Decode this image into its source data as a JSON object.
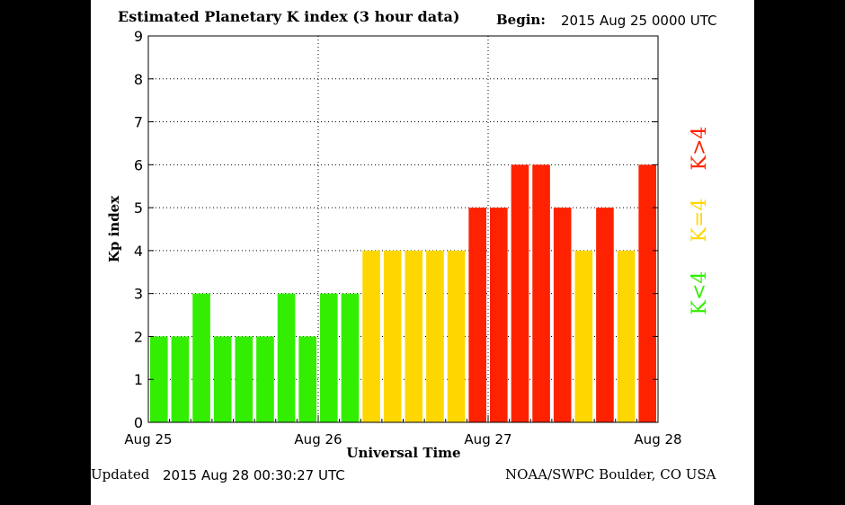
{
  "header": {
    "title": "Estimated Planetary K index (3 hour data)",
    "begin_label": "Begin:",
    "begin_value": "2015 Aug 25 0000 UTC"
  },
  "footer": {
    "updated_label": "Updated",
    "updated_value": "2015 Aug 28 00:30:27 UTC",
    "credit": "NOAA/SWPC Boulder, CO USA"
  },
  "legend": {
    "high": {
      "label": "K>4",
      "color": "#ff2200"
    },
    "equal": {
      "label": "K=4",
      "color": "#ffd700"
    },
    "low": {
      "label": "K<4",
      "color": "#33ee00"
    }
  },
  "chart_data": {
    "type": "bar",
    "xlabel": "Universal Time",
    "ylabel": "Kp index",
    "ylim": [
      0,
      9
    ],
    "yticks": [
      0,
      1,
      2,
      3,
      4,
      5,
      6,
      7,
      8,
      9
    ],
    "x_tick_labels": [
      "Aug 25",
      "Aug 26",
      "Aug 27",
      "Aug 28"
    ],
    "interval_hours": 3,
    "values": [
      2,
      2,
      3,
      2,
      2,
      2,
      3,
      2,
      3,
      3,
      4,
      4,
      4,
      4,
      4,
      5,
      5,
      6,
      6,
      5,
      4,
      5,
      4,
      6
    ],
    "colors": {
      "low": "#33ee00",
      "equal": "#ffd700",
      "high": "#ff2200"
    },
    "grid": "dotted"
  }
}
